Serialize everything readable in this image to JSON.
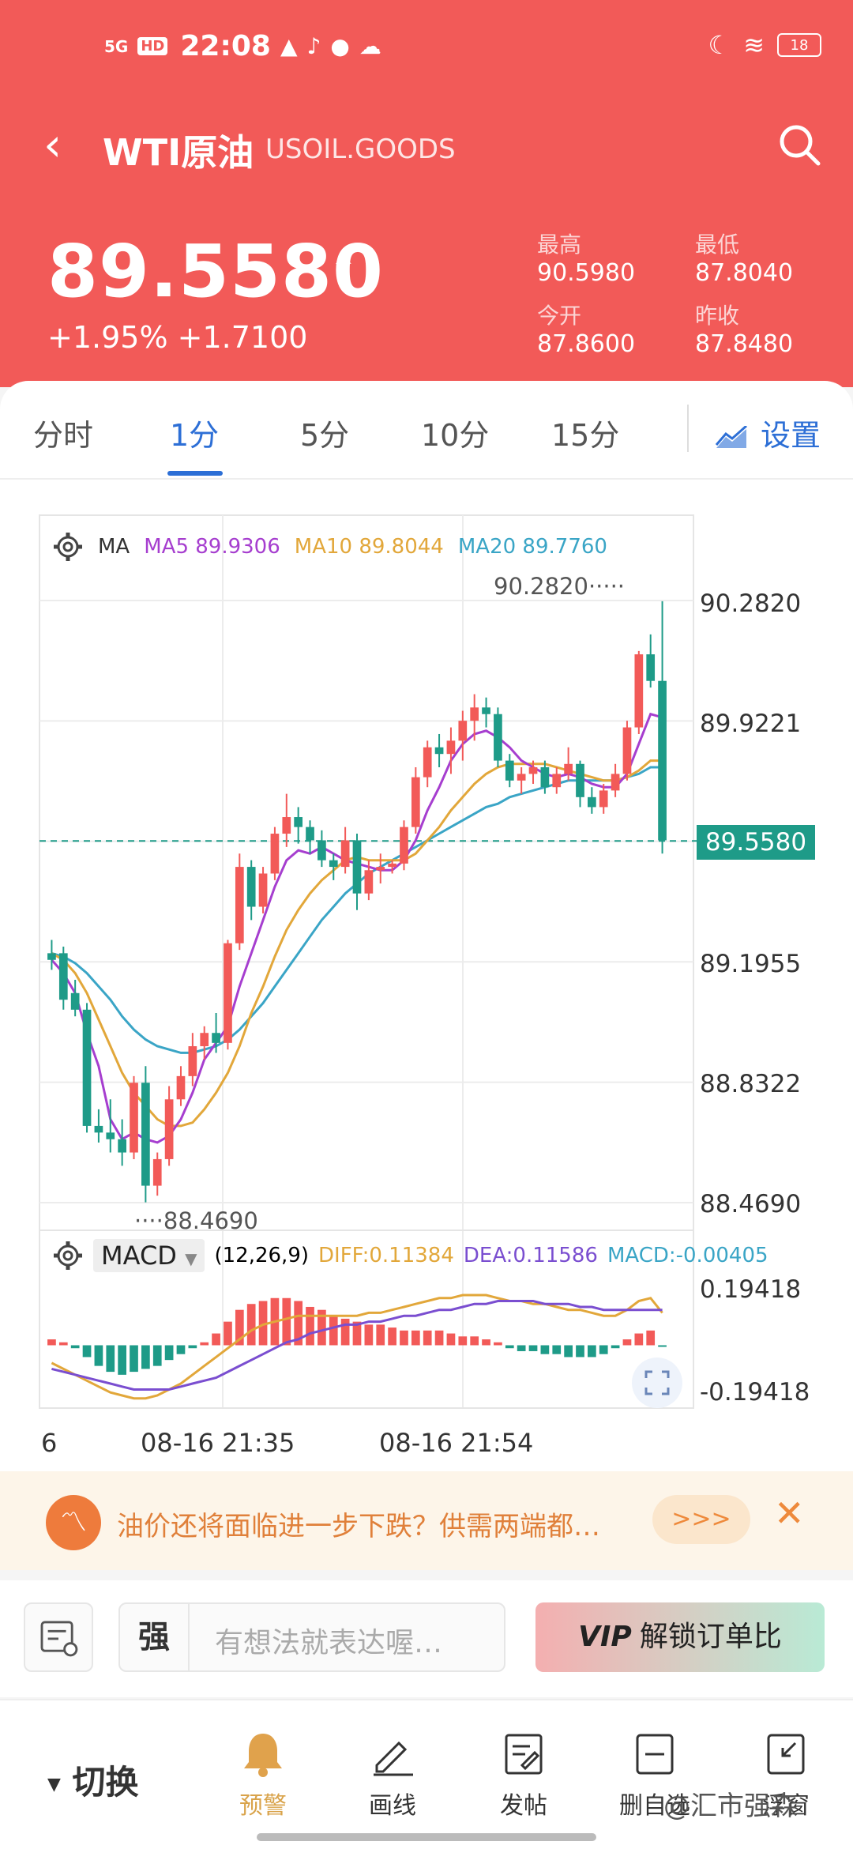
{
  "status_bar": {
    "network": "5G",
    "hd": "HD",
    "time": "22:08",
    "battery": "18"
  },
  "header": {
    "title": "WTI原油",
    "code": "USOIL.GOODS",
    "price": "89.5580",
    "change": "+1.95%  +1.7100",
    "stats": {
      "high_label": "最高",
      "high": "90.5980",
      "low_label": "最低",
      "low": "87.8040",
      "open_label": "今开",
      "open": "87.8600",
      "prev_close_label": "昨收",
      "prev_close": "87.8480"
    }
  },
  "tabs": [
    "分时",
    "1分",
    "5分",
    "10分",
    "15分"
  ],
  "active_tab": "1分",
  "settings_label": "设置",
  "chart_data": {
    "type": "candlestick",
    "legend": {
      "ma": "MA",
      "ma5": "MA5 89.9306",
      "ma10": "MA10 89.8044",
      "ma20": "MA20 89.7760"
    },
    "y_ticks": [
      "90.2820",
      "89.9221",
      "89.5580",
      "89.1955",
      "88.8322",
      "88.4690"
    ],
    "current_price_tag": "89.5580",
    "high_marker": "90.2820",
    "low_marker": "88.4690",
    "x_ticks": [
      "6",
      "08-16 21:35",
      "08-16 21:54"
    ],
    "ylim": [
      88.469,
      90.282
    ],
    "candles_ohlc": [
      [
        89.22,
        89.26,
        89.17,
        89.2
      ],
      [
        89.22,
        89.24,
        89.05,
        89.08
      ],
      [
        89.1,
        89.14,
        89.03,
        89.05
      ],
      [
        89.05,
        89.07,
        88.68,
        88.7
      ],
      [
        88.7,
        88.75,
        88.65,
        88.68
      ],
      [
        88.68,
        88.78,
        88.62,
        88.66
      ],
      [
        88.66,
        88.72,
        88.58,
        88.62
      ],
      [
        88.62,
        88.85,
        88.6,
        88.83
      ],
      [
        88.83,
        88.88,
        88.47,
        88.52
      ],
      [
        88.52,
        88.62,
        88.49,
        88.6
      ],
      [
        88.6,
        88.82,
        88.58,
        88.78
      ],
      [
        88.78,
        88.88,
        88.76,
        88.85
      ],
      [
        88.85,
        88.98,
        88.82,
        88.94
      ],
      [
        88.94,
        89.0,
        88.9,
        88.98
      ],
      [
        88.98,
        89.04,
        88.92,
        88.95
      ],
      [
        88.95,
        89.26,
        88.93,
        89.25
      ],
      [
        89.25,
        89.52,
        89.23,
        89.48
      ],
      [
        89.48,
        89.5,
        89.32,
        89.36
      ],
      [
        89.36,
        89.48,
        89.34,
        89.46
      ],
      [
        89.46,
        89.6,
        89.44,
        89.58
      ],
      [
        89.58,
        89.7,
        89.54,
        89.63
      ],
      [
        89.63,
        89.66,
        89.55,
        89.6
      ],
      [
        89.6,
        89.62,
        89.52,
        89.56
      ],
      [
        89.56,
        89.59,
        89.48,
        89.5
      ],
      [
        89.5,
        89.52,
        89.44,
        89.48
      ],
      [
        89.48,
        89.6,
        89.46,
        89.56
      ],
      [
        89.56,
        89.58,
        89.35,
        89.4
      ],
      [
        89.4,
        89.5,
        89.38,
        89.47
      ],
      [
        89.47,
        89.52,
        89.43,
        89.48
      ],
      [
        89.48,
        89.5,
        89.46,
        89.49
      ],
      [
        89.49,
        89.62,
        89.47,
        89.6
      ],
      [
        89.6,
        89.78,
        89.58,
        89.75
      ],
      [
        89.75,
        89.86,
        89.72,
        89.84
      ],
      [
        89.84,
        89.88,
        89.78,
        89.82
      ],
      [
        89.82,
        89.9,
        89.76,
        89.86
      ],
      [
        89.86,
        89.95,
        89.8,
        89.92
      ],
      [
        89.92,
        90.0,
        89.86,
        89.96
      ],
      [
        89.96,
        89.99,
        89.9,
        89.94
      ],
      [
        89.94,
        89.96,
        89.78,
        89.8
      ],
      [
        89.8,
        89.82,
        89.72,
        89.74
      ],
      [
        89.74,
        89.78,
        89.7,
        89.76
      ],
      [
        89.76,
        89.8,
        89.73,
        89.78
      ],
      [
        89.78,
        89.8,
        89.7,
        89.72
      ],
      [
        89.72,
        89.78,
        89.7,
        89.76
      ],
      [
        89.76,
        89.84,
        89.74,
        89.79
      ],
      [
        89.79,
        89.8,
        89.66,
        89.69
      ],
      [
        89.69,
        89.72,
        89.64,
        89.66
      ],
      [
        89.66,
        89.73,
        89.64,
        89.71
      ],
      [
        89.71,
        89.79,
        89.69,
        89.76
      ],
      [
        89.76,
        89.92,
        89.74,
        89.9
      ],
      [
        89.9,
        90.13,
        89.88,
        90.12
      ],
      [
        90.12,
        90.18,
        90.02,
        90.04
      ],
      [
        90.04,
        90.28,
        89.52,
        89.56
      ]
    ],
    "ma5": [
      89.2,
      89.16,
      89.1,
      88.98,
      88.88,
      88.72,
      88.66,
      88.68,
      88.66,
      88.65,
      88.67,
      88.72,
      88.8,
      88.9,
      88.95,
      89.0,
      89.12,
      89.22,
      89.32,
      89.42,
      89.5,
      89.53,
      89.52,
      89.54,
      89.52,
      89.5,
      89.49,
      89.48,
      89.47,
      89.47,
      89.5,
      89.56,
      89.65,
      89.72,
      89.8,
      89.85,
      89.88,
      89.89,
      89.87,
      89.84,
      89.8,
      89.78,
      89.76,
      89.75,
      89.76,
      89.75,
      89.73,
      89.72,
      89.72,
      89.76,
      89.85,
      89.94,
      89.93
    ],
    "ma10": [
      89.22,
      89.2,
      89.16,
      89.1,
      89.02,
      88.94,
      88.86,
      88.8,
      88.76,
      88.72,
      88.7,
      88.7,
      88.71,
      88.75,
      88.8,
      88.86,
      88.94,
      89.04,
      89.12,
      89.21,
      89.29,
      89.35,
      89.4,
      89.44,
      89.47,
      89.5,
      89.51,
      89.5,
      89.5,
      89.5,
      89.5,
      89.52,
      89.56,
      89.6,
      89.65,
      89.69,
      89.73,
      89.76,
      89.78,
      89.79,
      89.79,
      89.79,
      89.79,
      89.78,
      89.77,
      89.76,
      89.75,
      89.74,
      89.74,
      89.75,
      89.77,
      89.8,
      89.8
    ],
    "ma20": [
      89.22,
      89.21,
      89.19,
      89.16,
      89.12,
      89.08,
      89.03,
      88.99,
      88.96,
      88.94,
      88.93,
      88.92,
      88.92,
      88.93,
      88.94,
      88.96,
      88.99,
      89.03,
      89.07,
      89.12,
      89.17,
      89.22,
      89.27,
      89.32,
      89.36,
      89.4,
      89.43,
      89.46,
      89.48,
      89.5,
      89.52,
      89.54,
      89.56,
      89.58,
      89.6,
      89.62,
      89.64,
      89.66,
      89.67,
      89.69,
      89.7,
      89.71,
      89.72,
      89.73,
      89.74,
      89.74,
      89.74,
      89.74,
      89.74,
      89.75,
      89.76,
      89.78,
      89.78
    ]
  },
  "macd": {
    "label": "MACD",
    "params": "(12,26,9)",
    "diff": "DIFF:0.11384",
    "dea": "DEA:0.11586",
    "macd": "MACD:-0.00405",
    "y_ticks": [
      "0.19418",
      "-0.19418"
    ],
    "ylim": [
      -0.19418,
      0.19418
    ],
    "hist": [
      0.02,
      0.01,
      -0.01,
      -0.04,
      -0.07,
      -0.09,
      -0.1,
      -0.09,
      -0.08,
      -0.07,
      -0.05,
      -0.03,
      -0.01,
      0.01,
      0.04,
      0.08,
      0.12,
      0.14,
      0.15,
      0.16,
      0.16,
      0.15,
      0.13,
      0.12,
      0.1,
      0.09,
      0.08,
      0.07,
      0.07,
      0.06,
      0.05,
      0.05,
      0.05,
      0.05,
      0.04,
      0.03,
      0.03,
      0.02,
      0.01,
      -0.01,
      -0.02,
      -0.02,
      -0.03,
      -0.03,
      -0.04,
      -0.04,
      -0.04,
      -0.03,
      -0.01,
      0.02,
      0.04,
      0.05,
      -0.004
    ],
    "diff_line": [
      -0.06,
      -0.08,
      -0.1,
      -0.12,
      -0.14,
      -0.16,
      -0.17,
      -0.18,
      -0.18,
      -0.17,
      -0.15,
      -0.13,
      -0.1,
      -0.07,
      -0.04,
      -0.01,
      0.02,
      0.05,
      0.07,
      0.08,
      0.09,
      0.1,
      0.1,
      0.1,
      0.1,
      0.1,
      0.1,
      0.11,
      0.11,
      0.12,
      0.13,
      0.14,
      0.15,
      0.16,
      0.16,
      0.17,
      0.17,
      0.17,
      0.16,
      0.15,
      0.15,
      0.14,
      0.14,
      0.13,
      0.12,
      0.12,
      0.11,
      0.1,
      0.1,
      0.12,
      0.15,
      0.16,
      0.11
    ],
    "dea_line": [
      -0.08,
      -0.09,
      -0.1,
      -0.11,
      -0.12,
      -0.13,
      -0.14,
      -0.15,
      -0.15,
      -0.15,
      -0.15,
      -0.14,
      -0.13,
      -0.12,
      -0.11,
      -0.09,
      -0.07,
      -0.05,
      -0.03,
      -0.01,
      0.01,
      0.02,
      0.04,
      0.05,
      0.06,
      0.07,
      0.07,
      0.08,
      0.08,
      0.09,
      0.1,
      0.1,
      0.11,
      0.12,
      0.12,
      0.13,
      0.14,
      0.14,
      0.15,
      0.15,
      0.15,
      0.15,
      0.14,
      0.14,
      0.14,
      0.13,
      0.13,
      0.12,
      0.12,
      0.12,
      0.12,
      0.12,
      0.12
    ]
  },
  "banner": {
    "text": "油价还将面临进一步下跌？供需两端都…",
    "more": ">>>"
  },
  "input": {
    "prefix": "强",
    "placeholder": "有想法就表达喔…",
    "vip_badge": "VIP",
    "vip_text": "解锁订单比"
  },
  "bottom_nav": {
    "switch_label": "切换",
    "items": [
      "预警",
      "画线",
      "发帖",
      "删自选",
      "浮窗"
    ],
    "watermark": "@汇市强森"
  },
  "colors": {
    "up": "#f25a58",
    "down": "#1e9b88",
    "brand_blue": "#2d6fd6"
  }
}
